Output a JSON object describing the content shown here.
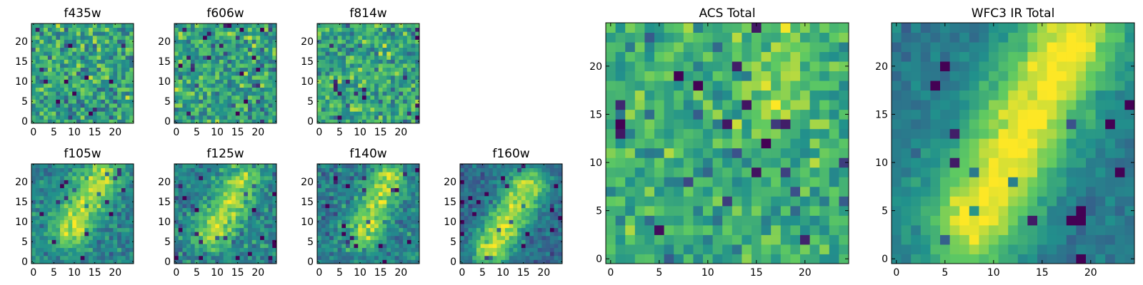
{
  "figure": {
    "colormap": "viridis",
    "colormap_stops": [
      "#440154",
      "#3b528b",
      "#21918c",
      "#5ec962",
      "#fde725"
    ]
  },
  "chart_data": [
    {
      "type": "heatmap",
      "title": "f435w",
      "image_size": 25,
      "xlim": [
        -0.5,
        24.5
      ],
      "ylim": [
        -0.5,
        24.5
      ],
      "xticks": [
        0,
        5,
        10,
        15,
        20
      ],
      "yticks": [
        0,
        5,
        10,
        15,
        20
      ],
      "structure": "noise",
      "seed": 11,
      "noise_level": 0.55,
      "base_level": 0.58,
      "blob": null
    },
    {
      "type": "heatmap",
      "title": "f606w",
      "image_size": 25,
      "xlim": [
        -0.5,
        24.5
      ],
      "ylim": [
        -0.5,
        24.5
      ],
      "xticks": [
        0,
        5,
        10,
        15,
        20
      ],
      "yticks": [
        0,
        5,
        10,
        15,
        20
      ],
      "structure": "noise",
      "seed": 23,
      "noise_level": 0.55,
      "base_level": 0.58,
      "blob": null
    },
    {
      "type": "heatmap",
      "title": "f814w",
      "image_size": 25,
      "xlim": [
        -0.5,
        24.5
      ],
      "ylim": [
        -0.5,
        24.5
      ],
      "xticks": [
        0,
        5,
        10,
        15,
        20
      ],
      "yticks": [
        0,
        5,
        10,
        15,
        20
      ],
      "structure": "noise",
      "seed": 37,
      "noise_level": 0.55,
      "base_level": 0.6,
      "blob": null
    },
    {
      "type": "heatmap",
      "title": "f105w",
      "image_size": 25,
      "xlim": [
        -0.5,
        24.5
      ],
      "ylim": [
        -0.5,
        24.5
      ],
      "xticks": [
        0,
        5,
        10,
        15,
        20
      ],
      "yticks": [
        0,
        5,
        10,
        15,
        20
      ],
      "structure": "diagonal-blob",
      "seed": 41,
      "noise_level": 0.35,
      "base_level": 0.45,
      "blob": {
        "x_start": 9,
        "y_start": 8,
        "x_end": 17,
        "y_end": 22,
        "width": 3.2,
        "amplitude": 0.45
      }
    },
    {
      "type": "heatmap",
      "title": "f125w",
      "image_size": 25,
      "xlim": [
        -0.5,
        24.5
      ],
      "ylim": [
        -0.5,
        24.5
      ],
      "xticks": [
        0,
        5,
        10,
        15,
        20
      ],
      "yticks": [
        0,
        5,
        10,
        15,
        20
      ],
      "structure": "diagonal-blob",
      "seed": 53,
      "noise_level": 0.38,
      "base_level": 0.45,
      "blob": {
        "x_start": 9,
        "y_start": 7,
        "x_end": 16,
        "y_end": 20,
        "width": 3.0,
        "amplitude": 0.42
      }
    },
    {
      "type": "heatmap",
      "title": "f140w",
      "image_size": 25,
      "xlim": [
        -0.5,
        24.5
      ],
      "ylim": [
        -0.5,
        24.5
      ],
      "xticks": [
        0,
        5,
        10,
        15,
        20
      ],
      "yticks": [
        0,
        5,
        10,
        15,
        20
      ],
      "structure": "diagonal-blob",
      "seed": 67,
      "noise_level": 0.38,
      "base_level": 0.42,
      "blob": {
        "x_start": 11,
        "y_start": 7,
        "x_end": 17,
        "y_end": 21,
        "width": 2.8,
        "amplitude": 0.45
      }
    },
    {
      "type": "heatmap",
      "title": "f160w",
      "image_size": 25,
      "xlim": [
        -0.5,
        24.5
      ],
      "ylim": [
        -0.5,
        24.5
      ],
      "xticks": [
        0,
        5,
        10,
        15,
        20
      ],
      "yticks": [
        0,
        5,
        10,
        15,
        20
      ],
      "structure": "diagonal-blob",
      "seed": 79,
      "noise_level": 0.3,
      "base_level": 0.35,
      "blob": {
        "x_start": 7,
        "y_start": 3,
        "x_end": 16,
        "y_end": 19,
        "width": 3.2,
        "amplitude": 0.55
      }
    },
    {
      "type": "heatmap",
      "title": "ACS Total",
      "image_size": 25,
      "xlim": [
        -0.5,
        24.5
      ],
      "ylim": [
        -0.5,
        24.5
      ],
      "xticks": [
        0,
        5,
        10,
        15,
        20
      ],
      "yticks": [
        0,
        5,
        10,
        15,
        20
      ],
      "structure": "noise-with-faint-streak",
      "seed": 97,
      "noise_level": 0.45,
      "base_level": 0.62,
      "blob": {
        "x_start": 16,
        "y_start": 14,
        "x_end": 19,
        "y_end": 24,
        "width": 1.6,
        "amplitude": 0.22
      }
    },
    {
      "type": "heatmap",
      "title": "WFC3 IR Total",
      "image_size": 25,
      "xlim": [
        -0.5,
        24.5
      ],
      "ylim": [
        -0.5,
        24.5
      ],
      "xticks": [
        0,
        5,
        10,
        15,
        20
      ],
      "yticks": [
        0,
        5,
        10,
        15,
        20
      ],
      "structure": "diagonal-blob",
      "seed": 113,
      "noise_level": 0.18,
      "base_level": 0.4,
      "blob": {
        "x_start": 8,
        "y_start": 4,
        "x_end": 18,
        "y_end": 23,
        "width": 3.6,
        "amplitude": 0.6
      }
    }
  ]
}
